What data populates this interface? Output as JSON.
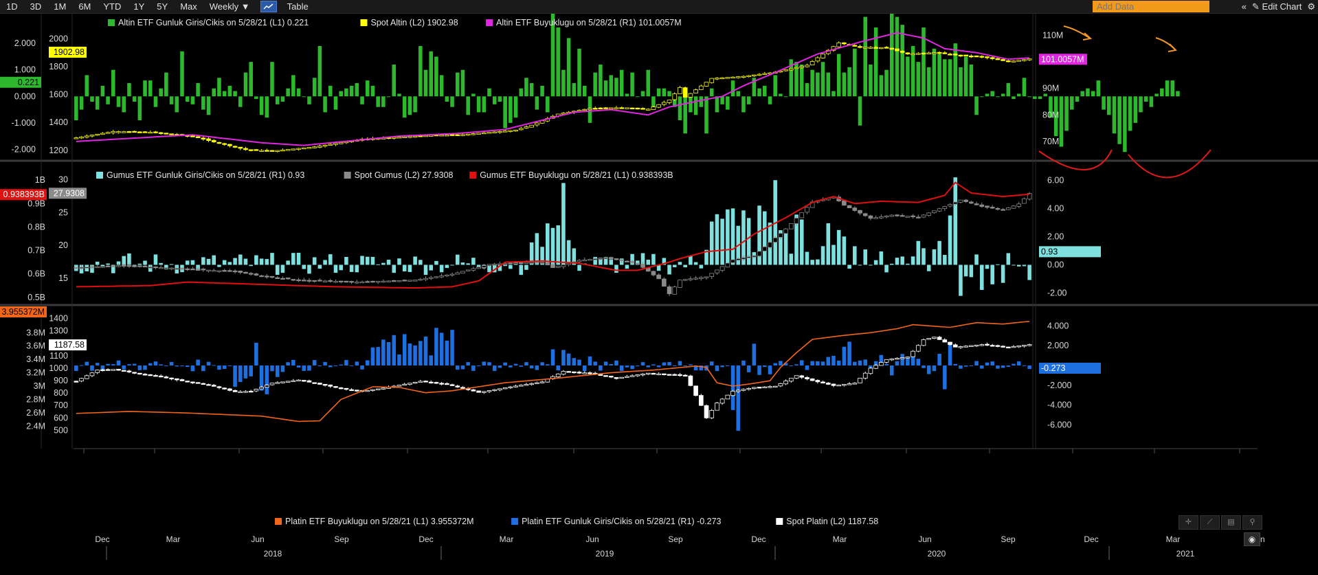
{
  "toolbar": {
    "periods": [
      "1D",
      "3D",
      "1M",
      "6M",
      "YTD",
      "1Y",
      "5Y",
      "Max"
    ],
    "frequency": "Weekly",
    "table_label": "Table",
    "add_data_placeholder": "Add Data",
    "edit_chart_label": "Edit Chart",
    "collapse_symbol": "«",
    "edit_icon_symbol": "✎",
    "settings_icon_symbol": "⚙"
  },
  "colors": {
    "gold_flow": "#2eb82e",
    "gold_spot": "#ffff00",
    "gold_size": "#e026e0",
    "silver_flow": "#7fe0e0",
    "silver_spot": "#8a8a8a",
    "silver_size": "#e01010",
    "plat_flow": "#1e6fe0",
    "plat_spot": "#ffffff",
    "plat_size": "#f2661a",
    "annot_arrow": "#f0962a",
    "annot_curve": "#e01a1a"
  },
  "chart_data": [
    {
      "type": "bar-candlestick-line",
      "panel": "gold",
      "legend": [
        {
          "name": "Altin ETF Gunluk Giris/Cikis on 5/28/21 (L1) 0.221",
          "color": "#2eb82e"
        },
        {
          "name": "Spot Altin (L2) 1902.98",
          "color": "#ffff00"
        },
        {
          "name": "Altin ETF Buyuklugu on 5/28/21 (R1) 101.0057M",
          "color": "#e026e0"
        }
      ],
      "flow_axis": {
        "ticks": [
          "2.000",
          "1.000",
          "0.000",
          "-1.000",
          "-2.000"
        ],
        "range": [
          -2.3,
          2.6
        ]
      },
      "spot_axis": {
        "ticks": [
          "2000",
          "1800",
          "1600",
          "1400",
          "1200"
        ],
        "range": [
          1150,
          2080
        ]
      },
      "size_axis": {
        "ticks": [
          "110M",
          "100M",
          "90M",
          "80M",
          "70M"
        ],
        "range": [
          64,
          113
        ]
      },
      "last_values": {
        "flow": "0.221",
        "spot": "1902.98",
        "size": "101.0057M"
      },
      "flows": [
        -0.9,
        -0.5,
        0.8,
        -0.2,
        -0.5,
        0.4,
        -0.3,
        1.0,
        -0.4,
        -0.6,
        0.5,
        -0.2,
        -0.9,
        0.6,
        0.6,
        -0.4,
        0.3,
        0.9,
        -0.3,
        -0.6,
        1.7,
        -0.2,
        -0.3,
        0.5,
        -0.5,
        -0.7,
        0.3,
        0.7,
        0.2,
        0.4,
        0.2,
        -0.4,
        0.9,
        1.3,
        -0.1,
        -0.7,
        -0.8,
        1.3,
        -0.3,
        -0.2,
        0.3,
        0.8,
        0.3,
        0.0,
        -0.3,
        0.7,
        1.9,
        -0.6,
        0.4,
        -0.5,
        0.2,
        0.3,
        0.4,
        0.5,
        -0.3,
        0.6,
        0.4,
        -0.4,
        -0.4,
        0.0,
        1.2,
        0.1,
        -0.8,
        -0.7,
        -0.6,
        1.9,
        1.0,
        1.7,
        1.5,
        0.8,
        -0.2,
        -0.4,
        0.9,
        1.0,
        -0.7,
        0.1,
        -0.6,
        -0.6,
        0.3,
        -0.3,
        -0.2,
        -1.2,
        -1.0,
        -0.8,
        0.3,
        0.7,
        0.5,
        -0.5,
        0.4,
        -0.6,
        3.8,
        2.6,
        1.0,
        2.2,
        0.5,
        1.8,
        0.4,
        -1.0,
        0.9,
        1.2,
        0.6,
        0.8,
        0.7,
        1.0,
        0.1,
        0.9,
        0.0,
        0.2,
        1.0,
        -0.5,
        0.3,
        0.3,
        0.2,
        -0.4,
        -0.9,
        -1.4,
        -0.6,
        -0.7,
        -0.4,
        -1.4,
        0.3,
        -0.6,
        -0.3,
        -0.5,
        0.6,
        0.2,
        -0.6,
        -0.3,
        0.7,
        0.3,
        0.4,
        -0.3,
        0.8,
        0.1,
        0.0,
        1.4,
        1.3,
        1.2,
        0.5,
        1.0,
        0.9,
        1.3,
        0.9,
        0.2,
        1.6,
        0.9,
        1.1,
        1.8,
        -1.1,
        3.0,
        1.2,
        2.6,
        0.8,
        1.0,
        3.2,
        3.0,
        2.7,
        1.5,
        1.9,
        1.3,
        2.6,
        1.1,
        1.8,
        1.6,
        1.4,
        1.4,
        2.0,
        1.1,
        1.5,
        1.2,
        -0.7,
        0.0,
        0.1,
        0.2,
        0.0,
        0.1,
        0.5,
        -0.1,
        0.1,
        0.7,
        0.0,
        -0.1,
        -0.1,
        0.1,
        -0.8,
        -1.5,
        -1.9,
        -1.3,
        -0.5,
        -0.2,
        0.2,
        0.3,
        0.2,
        0.6,
        -0.5,
        -0.7,
        -1.4,
        -1.8,
        -2.1,
        -1.3,
        -1.0,
        -0.6,
        -0.2,
        -0.4,
        0.1,
        0.3,
        0.6,
        0.6,
        0.2
      ]
    },
    {
      "type": "bar-candlestick-line",
      "panel": "silver",
      "legend": [
        {
          "name": "Gumus ETF Gunluk Giris/Cikis on 5/28/21 (R1) 0.93",
          "color": "#7fe0e0"
        },
        {
          "name": "Spot Gumus (L2) 27.9308",
          "color": "#8a8a8a"
        },
        {
          "name": "Gumus ETF Buyuklugu on 5/28/21 (L1) 0.938393B",
          "color": "#e01010"
        }
      ],
      "size_axis": {
        "ticks": [
          "1B",
          "0.9B",
          "0.8B",
          "0.7B",
          "0.6B",
          "0.5B"
        ],
        "range": [
          0.47,
          1.03
        ]
      },
      "spot_axis": {
        "ticks": [
          "30",
          "25",
          "20",
          "15"
        ],
        "range": [
          11,
          31
        ]
      },
      "flow_axis": {
        "ticks": [
          "6.00",
          "4.00",
          "2.00",
          "0.00",
          "-2.00"
        ],
        "range": [
          -2.8,
          6.5
        ]
      },
      "last_values": {
        "size": "0.938393B",
        "spot": "27.9308",
        "flow": "0.93"
      }
    },
    {
      "type": "bar-candlestick-line",
      "panel": "platinum",
      "legend": [
        {
          "name": "Platin ETF Buyuklugu on 5/28/21 (L1) 3.955372M",
          "color": "#f2661a"
        },
        {
          "name": "Platin ETF Gunluk Giris/Cikis on 5/28/21 (R1) -0.273",
          "color": "#1e6fe0"
        },
        {
          "name": "Spot Platin (L2) 1187.58",
          "color": "#ffffff"
        }
      ],
      "size_axis": {
        "ticks": [
          "3.8M",
          "3.6M",
          "3.4M",
          "3.2M",
          "3M",
          "2.8M",
          "2.6M",
          "2.4M"
        ],
        "range": [
          2.3,
          4.05
        ]
      },
      "spot_axis": {
        "ticks": [
          "1400",
          "1300",
          "1200",
          "1100",
          "1000",
          "900",
          "800",
          "700",
          "600",
          "500"
        ],
        "range": [
          480,
          1420
        ]
      },
      "flow_axis": {
        "ticks": [
          "4.000",
          "2.000",
          "-2.000",
          "-4.000",
          "-6.000"
        ],
        "range": [
          -6.8,
          5.0
        ]
      },
      "last_values": {
        "size": "3.955372M",
        "spot": "1187.58",
        "flow": "-0.273"
      }
    }
  ],
  "time_axis": {
    "months": [
      "Dec",
      "Mar",
      "Jun",
      "Sep",
      "Dec",
      "Mar",
      "Jun",
      "Sep",
      "Dec",
      "Mar",
      "Jun",
      "Sep",
      "Dec",
      "Mar",
      "Jun"
    ],
    "years": [
      "2018",
      "2019",
      "2020",
      "2021"
    ]
  }
}
